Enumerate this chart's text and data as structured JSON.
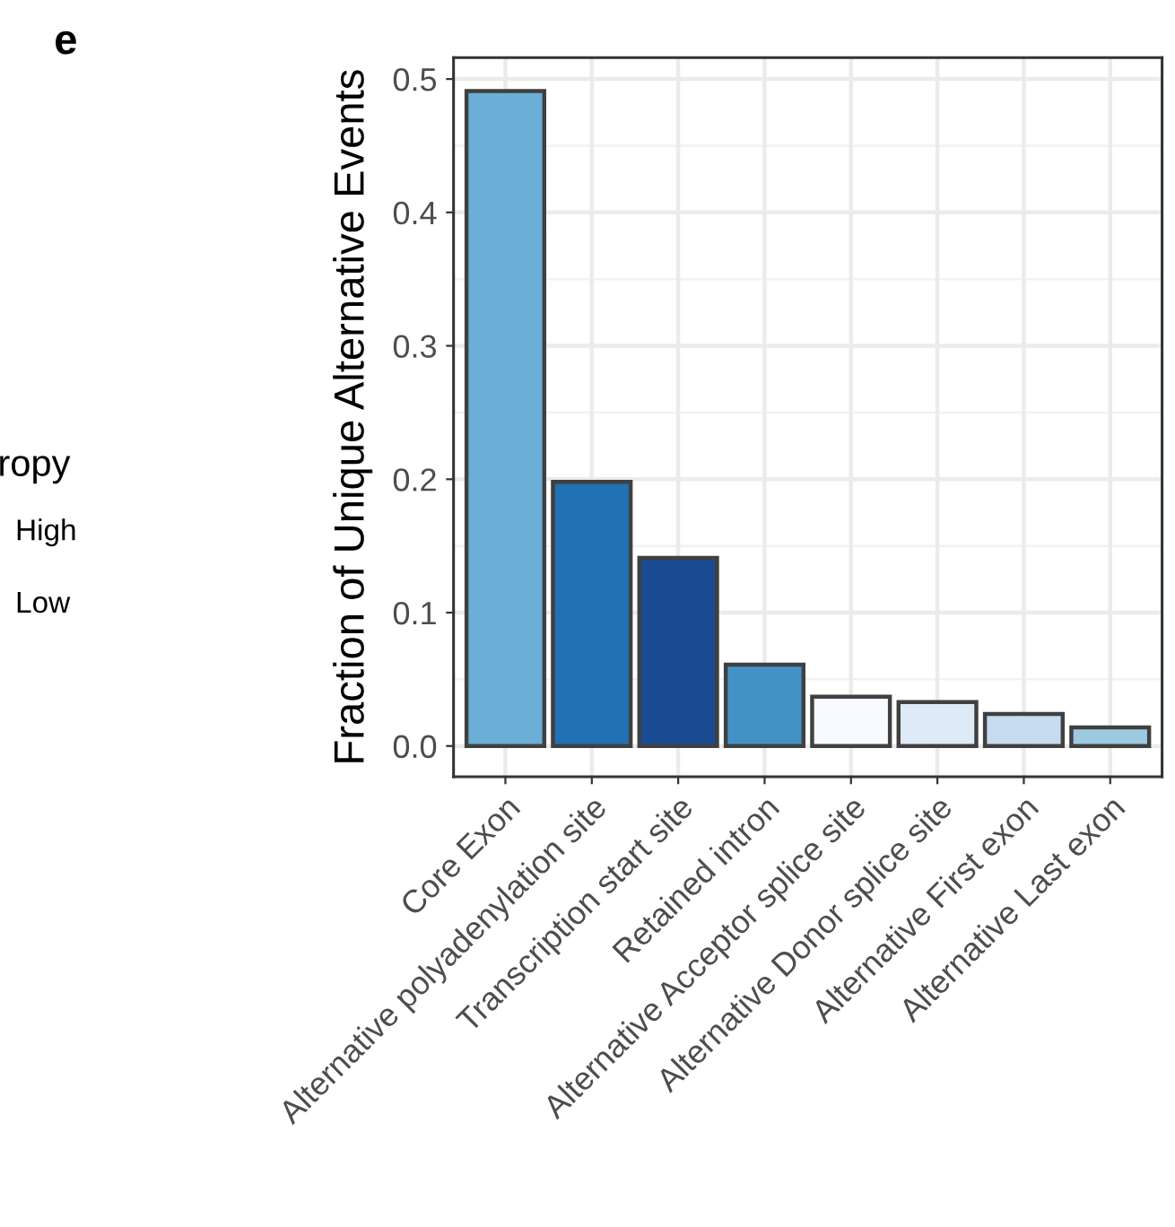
{
  "chart_data": {
    "type": "bar",
    "ylabel": "Fraction of Unique Alternative Events",
    "categories": [
      "Core Exon",
      "Alternative polyadenylation site",
      "Transcription start site",
      "Retained intron",
      "Alternative Acceptor splice site",
      "Alternative Donor splice site",
      "Alternative First exon",
      "Alternative Last exon"
    ],
    "values": [
      0.491,
      0.198,
      0.141,
      0.061,
      0.037,
      0.033,
      0.024,
      0.014
    ],
    "colors": [
      "#6baed6",
      "#2171b5",
      "#1a4a92",
      "#4292c6",
      "#f7fbff",
      "#deebf7",
      "#c6dbef",
      "#9ecae1"
    ],
    "ylim": [
      -0.023,
      0.516
    ],
    "yticks": [
      {
        "value": 0,
        "label": "0.0"
      },
      0.1,
      0.2,
      0.3,
      0.4,
      0.5
    ],
    "grid": true,
    "legend": false,
    "annotations": [
      "e",
      "ropy",
      "High",
      "Low"
    ]
  }
}
